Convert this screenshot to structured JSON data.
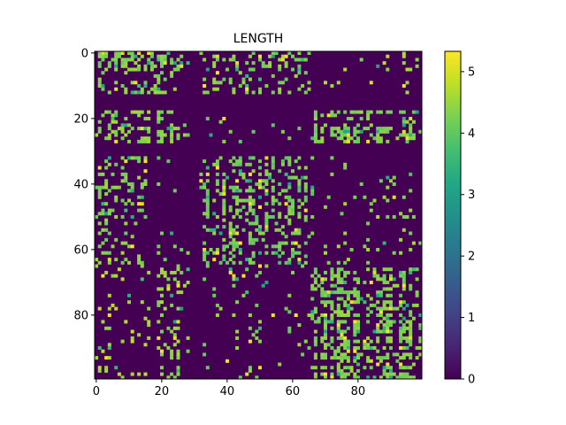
{
  "chart_data": {
    "type": "heatmap",
    "title": "LENGTH",
    "rows": 100,
    "cols": 100,
    "xticks": [
      0,
      20,
      40,
      60,
      80
    ],
    "yticks": [
      0,
      20,
      40,
      60,
      80
    ],
    "vmin": 0,
    "vmax": 5.33,
    "colorbar_ticks": [
      0,
      1,
      2,
      3,
      4,
      5
    ],
    "colormap": "viridis",
    "background_value": 0,
    "blocks": [
      {
        "rows": [
          0,
          12
        ],
        "cols": [
          0,
          28
        ],
        "density": 0.42,
        "value": 4.3
      },
      {
        "rows": [
          0,
          12
        ],
        "cols": [
          32,
          66
        ],
        "density": 0.28,
        "value": 4.3
      },
      {
        "rows": [
          0,
          12
        ],
        "cols": [
          70,
          99
        ],
        "density": 0.05,
        "value": 4.5
      },
      {
        "rows": [
          18,
          27
        ],
        "cols": [
          0,
          16
        ],
        "density": 0.45,
        "value": 4.4
      },
      {
        "rows": [
          18,
          27
        ],
        "cols": [
          19,
          28
        ],
        "density": 0.8,
        "value": 4.3
      },
      {
        "rows": [
          18,
          27
        ],
        "cols": [
          32,
          66
        ],
        "density": 0.06,
        "value": 4.2
      },
      {
        "rows": [
          18,
          27
        ],
        "cols": [
          66,
          99
        ],
        "density": 0.55,
        "value": 4.3
      },
      {
        "rows": [
          32,
          65
        ],
        "cols": [
          0,
          15
        ],
        "density": 0.32,
        "value": 4.3
      },
      {
        "rows": [
          32,
          65
        ],
        "cols": [
          19,
          28
        ],
        "density": 0.07,
        "value": 4.2
      },
      {
        "rows": [
          32,
          65
        ],
        "cols": [
          32,
          66
        ],
        "density": 0.45,
        "value": 4.2
      },
      {
        "rows": [
          32,
          65
        ],
        "cols": [
          70,
          99
        ],
        "density": 0.1,
        "value": 4.4
      },
      {
        "rows": [
          66,
          99
        ],
        "cols": [
          0,
          16
        ],
        "density": 0.1,
        "value": 4.6
      },
      {
        "rows": [
          66,
          99
        ],
        "cols": [
          19,
          28
        ],
        "density": 0.42,
        "value": 4.4
      },
      {
        "rows": [
          66,
          99
        ],
        "cols": [
          32,
          66
        ],
        "density": 0.07,
        "value": 4.3
      },
      {
        "rows": [
          66,
          99
        ],
        "cols": [
          66,
          99
        ],
        "density": 0.58,
        "value": 4.3
      }
    ]
  }
}
